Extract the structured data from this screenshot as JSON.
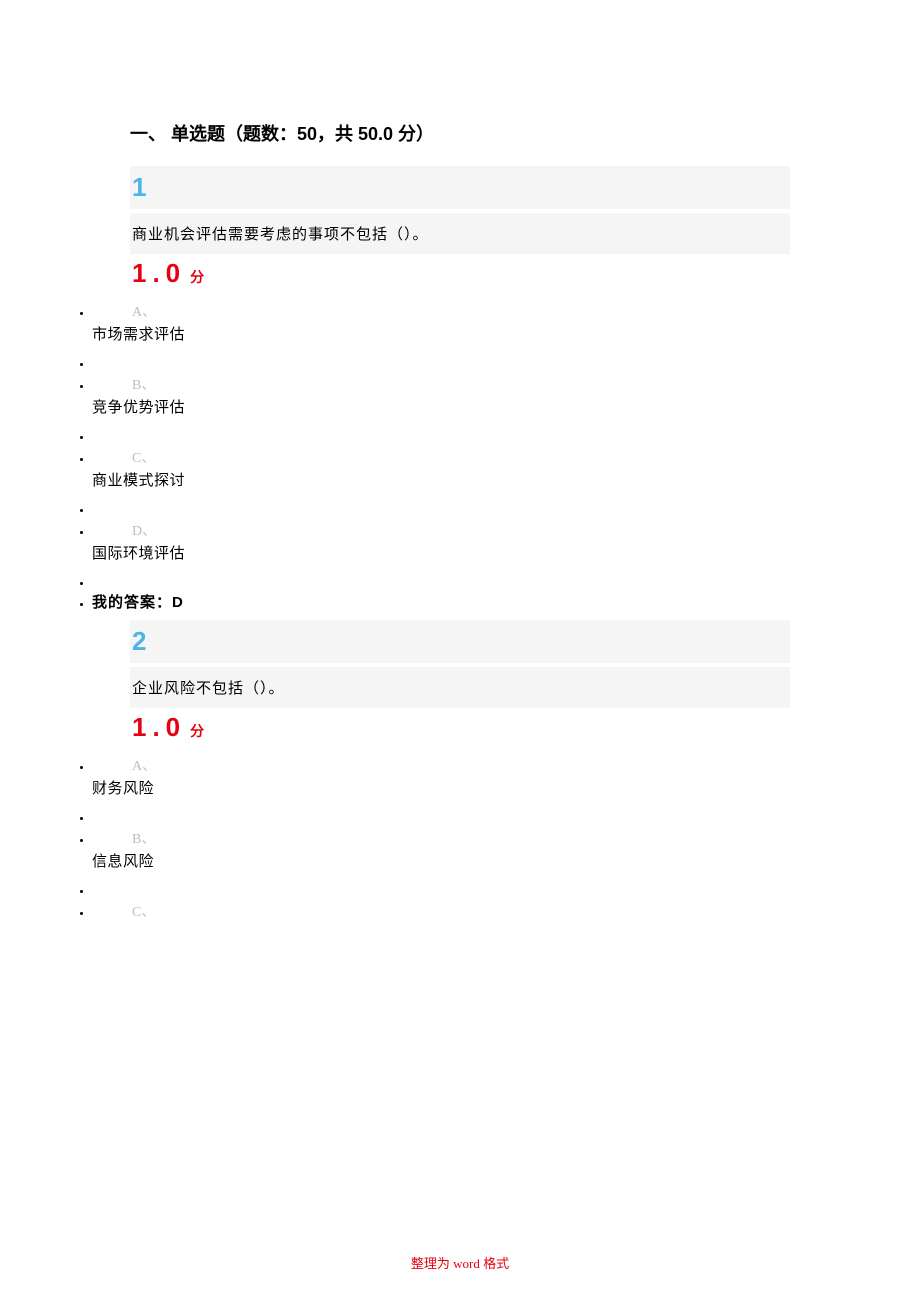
{
  "section_title": "一、 单选题（题数：50，共 50.0 分）",
  "score_value": "1.0",
  "score_unit": "分",
  "footer": "整理为 word 格式",
  "questions": [
    {
      "num": "1",
      "text": "商业机会评估需要考虑的事项不包括（）。",
      "options": [
        {
          "letter": "A、",
          "text": "市场需求评估"
        },
        {
          "letter": "B、",
          "text": "竞争优势评估"
        },
        {
          "letter": "C、",
          "text": "商业模式探讨"
        },
        {
          "letter": "D、",
          "text": "国际环境评估"
        }
      ],
      "answer_label": "我的答案：",
      "answer_value": "D"
    },
    {
      "num": "2",
      "text": "企业风险不包括（）。",
      "options": [
        {
          "letter": "A、",
          "text": "财务风险"
        },
        {
          "letter": "B、",
          "text": "信息风险"
        },
        {
          "letter": "C、",
          "text": ""
        }
      ],
      "answer_label": "",
      "answer_value": ""
    }
  ]
}
